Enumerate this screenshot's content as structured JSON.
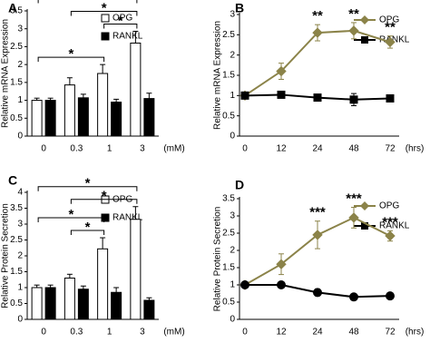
{
  "chart_data": [
    {
      "type": "bar",
      "label": "A",
      "ylabel": "Relative mRNA Expression",
      "xlabel": "(mM)",
      "categories": [
        "0",
        "0.3",
        "1",
        "3"
      ],
      "series": [
        {
          "name": "OPG",
          "color": "#ffffff",
          "values": [
            1,
            1.43,
            1.75,
            2.6
          ],
          "errors": [
            0.06,
            0.2,
            0.25,
            0.33
          ]
        },
        {
          "name": "RANKL",
          "color": "#000000",
          "values": [
            1,
            1.07,
            0.95,
            1.05
          ],
          "errors": [
            0.06,
            0.1,
            0.08,
            0.15
          ]
        }
      ],
      "ylim": [
        0,
        3.5
      ],
      "yticks": [
        0,
        0.5,
        1,
        1.5,
        2,
        2.5,
        3,
        3.5
      ],
      "annotations": [
        {
          "text": "*",
          "from": "0",
          "to": "1"
        },
        {
          "text": "*",
          "from": "1",
          "to": "3"
        },
        {
          "text": "*",
          "from": "0.3",
          "to": "3"
        },
        {
          "text": "*",
          "from": "0",
          "to": "3"
        }
      ]
    },
    {
      "type": "line",
      "label": "B",
      "ylabel": "Relative mRNA Expression",
      "xlabel": "(hrs)",
      "categories": [
        "0",
        "12",
        "24",
        "48",
        "72"
      ],
      "series": [
        {
          "name": "OPG",
          "color": "#8b8349",
          "marker": "diamond",
          "values": [
            1,
            1.6,
            2.55,
            2.6,
            2.32
          ],
          "errors": [
            0.05,
            0.2,
            0.2,
            0.2,
            0.15
          ]
        },
        {
          "name": "RANKL",
          "color": "#000000",
          "marker": "square",
          "values": [
            1,
            1.02,
            0.95,
            0.9,
            0.93
          ],
          "errors": [
            0.05,
            0.08,
            0.05,
            0.15,
            0.03
          ]
        }
      ],
      "ylim": [
        0,
        3
      ],
      "yticks": [
        0,
        0.5,
        1,
        1.5,
        2,
        2.5,
        3
      ],
      "annotations": [
        {
          "text": "**",
          "x": "24"
        },
        {
          "text": "**",
          "x": "48"
        },
        {
          "text": "**",
          "x": "72"
        }
      ]
    },
    {
      "type": "bar",
      "label": "C",
      "ylabel": "Relative Protein Secretion",
      "xlabel": "(mM)",
      "categories": [
        "0",
        "0.3",
        "1",
        "3"
      ],
      "series": [
        {
          "name": "OPG",
          "color": "#ffffff",
          "values": [
            1,
            1.3,
            2.22,
            3.15
          ],
          "errors": [
            0.08,
            0.12,
            0.35,
            0.4
          ]
        },
        {
          "name": "RANKL",
          "color": "#000000",
          "values": [
            1,
            0.95,
            0.85,
            0.6
          ],
          "errors": [
            0.08,
            0.1,
            0.15,
            0.08
          ]
        }
      ],
      "ylim": [
        0,
        4
      ],
      "yticks": [
        0,
        0.5,
        1,
        1.5,
        2,
        2.5,
        3,
        3.5,
        4
      ],
      "annotations": [
        {
          "text": "*",
          "from": "0.3",
          "to": "1"
        },
        {
          "text": "*",
          "from": "0",
          "to": "1"
        },
        {
          "text": "*",
          "from": "0.3",
          "to": "3"
        },
        {
          "text": "*",
          "from": "0",
          "to": "3"
        }
      ]
    },
    {
      "type": "line",
      "label": "D",
      "ylabel": "Relative Protein Secretion",
      "xlabel": "(hrs)",
      "categories": [
        "0",
        "12",
        "24",
        "48",
        "72"
      ],
      "series": [
        {
          "name": "OPG",
          "color": "#8b8349",
          "marker": "diamond",
          "values": [
            1,
            1.6,
            2.45,
            2.95,
            2.42
          ],
          "errors": [
            0.05,
            0.3,
            0.4,
            0.3,
            0.15
          ]
        },
        {
          "name": "RANKL",
          "color": "#000000",
          "marker": "circle",
          "values": [
            1,
            1,
            0.78,
            0.65,
            0.68
          ],
          "errors": [
            0.03,
            0.05,
            0.1,
            0.05,
            0.08
          ]
        }
      ],
      "ylim": [
        0,
        3.5
      ],
      "yticks": [
        0,
        0.5,
        1,
        1.5,
        2,
        2.5,
        3,
        3.5
      ],
      "annotations": [
        {
          "text": "***",
          "x": "24"
        },
        {
          "text": "***",
          "x": "48"
        },
        {
          "text": "***",
          "x": "72"
        }
      ]
    }
  ]
}
